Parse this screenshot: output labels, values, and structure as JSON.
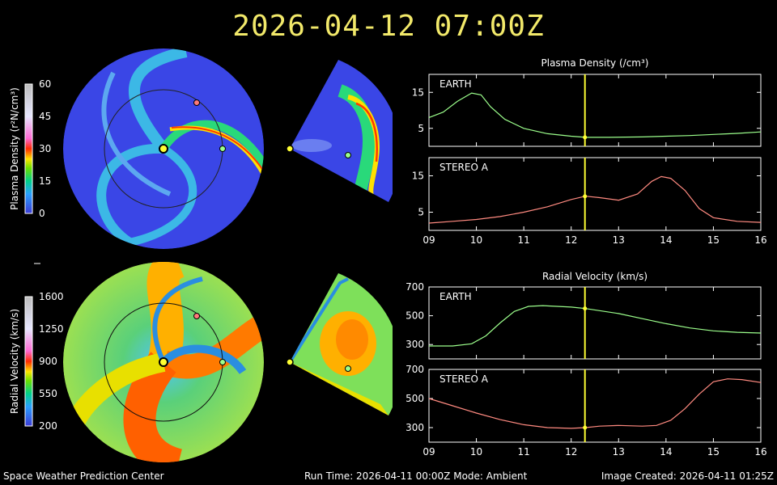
{
  "header": {
    "title": "2026-04-12  07:00Z"
  },
  "footer": {
    "left": "Space Weather Prediction Center",
    "middle": "Run Time: 2026-04-11 00:00Z  Mode: Ambient",
    "right": "Image Created: 2026-04-11 01:25Z"
  },
  "colorbars": [
    {
      "id": "density",
      "label": "Plasma Density (r²N/cm³)",
      "ticks": [
        "60",
        "45",
        "30",
        "15",
        "0"
      ]
    },
    {
      "id": "velocity",
      "label": "Radial Velocity (km/s)",
      "ticks": [
        "1600",
        "1250",
        "900",
        "550",
        "200"
      ]
    }
  ],
  "colors": {
    "title": "#f2e96a",
    "earth_line": "#9cff8c",
    "stereo_line": "#ff8a80",
    "marker": "#ffff33"
  },
  "chart_data": [
    {
      "type": "line",
      "title": "Plasma Density (/cm³)",
      "xlim": [
        9,
        16
      ],
      "ylim": [
        0,
        20
      ],
      "y_ticks": [
        5,
        15
      ],
      "x_ticks": [
        9,
        10,
        11,
        12,
        13,
        14,
        15,
        16
      ],
      "current_x": 12.29,
      "series": [
        {
          "name": "EARTH",
          "color": "#9cff8c",
          "x": [
            9.0,
            9.3,
            9.6,
            9.9,
            10.1,
            10.3,
            10.6,
            11.0,
            11.5,
            12.0,
            12.3,
            12.8,
            13.5,
            14.0,
            14.5,
            15.0,
            15.5,
            16.0
          ],
          "y": [
            8.0,
            9.5,
            12.5,
            14.8,
            14.3,
            11.0,
            7.5,
            5.0,
            3.5,
            2.8,
            2.5,
            2.5,
            2.6,
            2.8,
            3.0,
            3.3,
            3.6,
            4.0
          ]
        },
        {
          "name": "STEREO A",
          "color": "#ff8a80",
          "x": [
            9.0,
            9.5,
            10.0,
            10.5,
            11.0,
            11.5,
            12.0,
            12.3,
            12.6,
            13.0,
            13.4,
            13.7,
            13.9,
            14.1,
            14.4,
            14.7,
            15.0,
            15.5,
            16.0
          ],
          "y": [
            2.0,
            2.5,
            3.0,
            3.8,
            5.0,
            6.5,
            8.5,
            9.4,
            9.0,
            8.3,
            10.0,
            13.5,
            14.8,
            14.3,
            11.0,
            6.0,
            3.5,
            2.5,
            2.2
          ]
        }
      ]
    },
    {
      "type": "line",
      "title": "Radial Velocity (km/s)",
      "xlim": [
        9,
        16
      ],
      "ylim": [
        200,
        700
      ],
      "y_ticks": [
        300,
        500,
        700
      ],
      "x_ticks": [
        9,
        10,
        11,
        12,
        13,
        14,
        15,
        16
      ],
      "current_x": 12.29,
      "series": [
        {
          "name": "EARTH",
          "color": "#9cff8c",
          "x": [
            9.0,
            9.5,
            9.9,
            10.2,
            10.5,
            10.8,
            11.1,
            11.4,
            12.0,
            12.3,
            13.0,
            13.5,
            14.0,
            14.5,
            15.0,
            15.5,
            16.0
          ],
          "y": [
            290,
            290,
            305,
            360,
            450,
            530,
            565,
            570,
            560,
            550,
            515,
            480,
            445,
            415,
            395,
            385,
            380
          ]
        },
        {
          "name": "STEREO A",
          "color": "#ff8a80",
          "x": [
            9.0,
            9.5,
            10.0,
            10.5,
            11.0,
            11.5,
            12.0,
            12.3,
            12.6,
            13.0,
            13.5,
            13.8,
            14.1,
            14.4,
            14.7,
            15.0,
            15.3,
            15.6,
            16.0
          ],
          "y": [
            500,
            450,
            400,
            355,
            320,
            300,
            295,
            300,
            310,
            315,
            310,
            315,
            350,
            430,
            530,
            615,
            635,
            630,
            610
          ]
        }
      ]
    }
  ]
}
